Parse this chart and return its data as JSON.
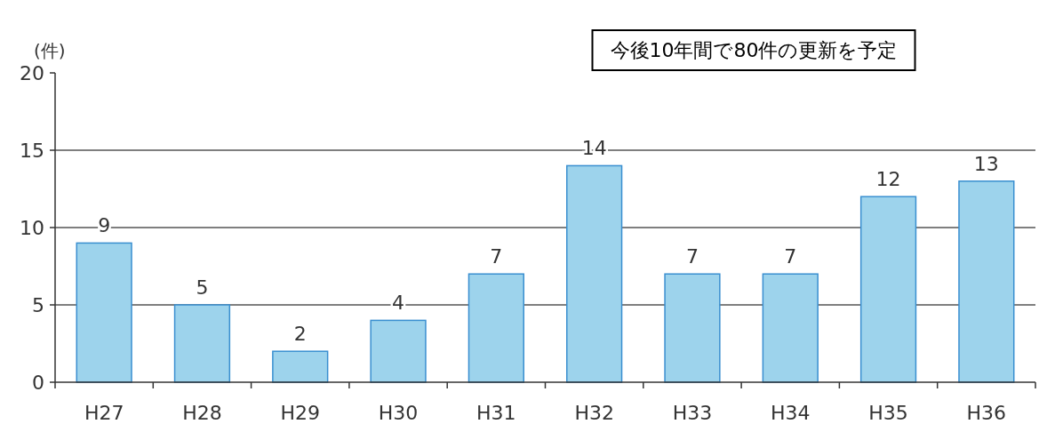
{
  "chart_data": {
    "type": "bar",
    "categories": [
      "H27",
      "H28",
      "H29",
      "H30",
      "H31",
      "H32",
      "H33",
      "H34",
      "H35",
      "H36"
    ],
    "values": [
      9,
      5,
      2,
      4,
      7,
      14,
      7,
      7,
      12,
      13
    ],
    "color": "#9dd3ec",
    "ylim": [
      0,
      20
    ],
    "yticks": [
      0,
      5,
      10,
      15,
      20
    ],
    "ylabel": "(件)",
    "annotations": [
      "今後10年間で80件の更新を予定"
    ],
    "data_labels": true,
    "grid": "y"
  }
}
